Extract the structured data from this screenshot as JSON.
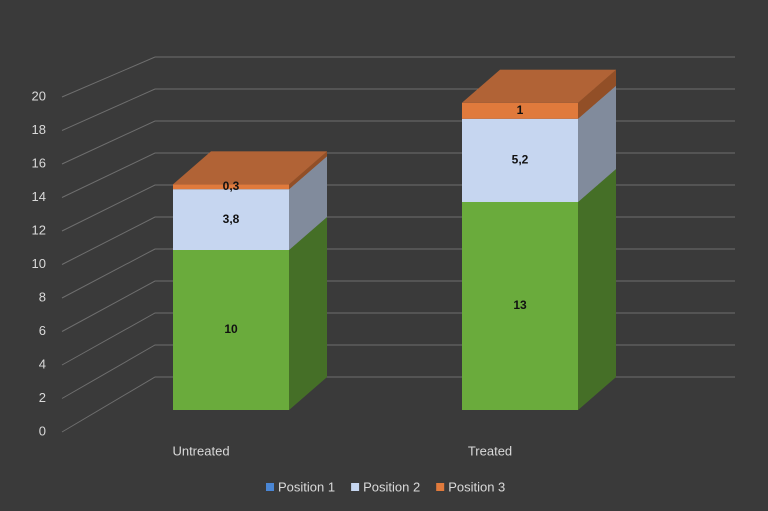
{
  "chart_data": {
    "type": "bar3d_stacked",
    "categories": [
      "Untreated",
      "Treated"
    ],
    "series": [
      {
        "name": "Position 1",
        "color": "#6aab3c",
        "legend_color": "#4a86d4",
        "values": [
          10,
          13
        ],
        "value_labels": [
          "10",
          "13"
        ]
      },
      {
        "name": "Position 2",
        "color": "#c6d6f0",
        "legend_color": "#c6d6f0",
        "values": [
          3.8,
          5.2
        ],
        "value_labels": [
          "3,8",
          "5,2"
        ]
      },
      {
        "name": "Position 3",
        "color": "#e07a3c",
        "legend_color": "#e07a3c",
        "values": [
          0.3,
          1
        ],
        "value_labels": [
          "0,3",
          "1"
        ]
      }
    ],
    "ylim": [
      0,
      20
    ],
    "yticks": [
      0,
      2,
      4,
      6,
      8,
      10,
      12,
      14,
      16,
      18,
      20
    ],
    "grid": true
  }
}
